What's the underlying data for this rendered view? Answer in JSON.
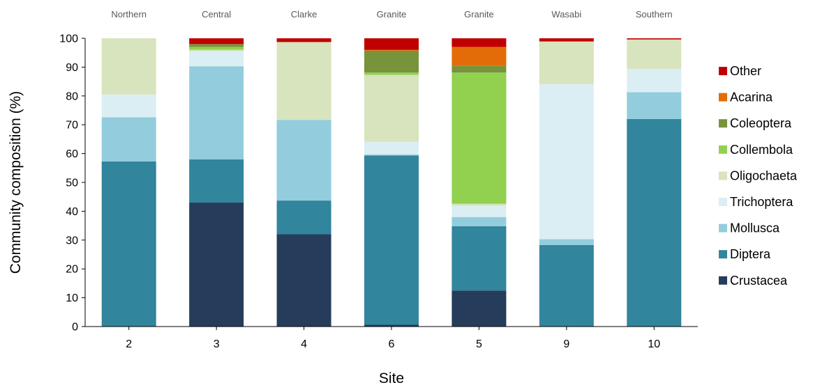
{
  "chart_data": {
    "type": "bar",
    "stacked": true,
    "xlabel": "Site",
    "ylabel": "Community composition (%)",
    "ylim": [
      0,
      100
    ],
    "yticks": [
      0,
      10,
      20,
      30,
      40,
      50,
      60,
      70,
      80,
      90,
      100
    ],
    "grid": false,
    "legend_position": "right",
    "categories": [
      "2",
      "3",
      "4",
      "6",
      "5",
      "9",
      "10"
    ],
    "site_names": [
      "Northern",
      "Central",
      "Clarke",
      "Granite",
      "Granite",
      "Wasabi",
      "Southern"
    ],
    "series": [
      {
        "name": "Crustacea",
        "color": "#253d5b",
        "values": [
          0,
          43,
          32,
          0.6,
          12.5,
          0,
          0
        ]
      },
      {
        "name": "Diptera",
        "color": "#31859c",
        "values": [
          57.3,
          15,
          11.7,
          58.7,
          22.3,
          28.3,
          72
        ]
      },
      {
        "name": "Mollusca",
        "color": "#93cddd",
        "values": [
          15.3,
          32.3,
          28,
          0.4,
          3.2,
          2,
          9.3
        ]
      },
      {
        "name": "Trichoptera",
        "color": "#dbeef4",
        "values": [
          7.9,
          5.2,
          0,
          4.4,
          3.9,
          53.8,
          8.1
        ]
      },
      {
        "name": "Oligochaeta",
        "color": "#d7e4bd",
        "values": [
          19.5,
          0.5,
          27,
          23.2,
          0.7,
          14.8,
          10.2
        ]
      },
      {
        "name": "Collembola",
        "color": "#92d050",
        "values": [
          0,
          1.0,
          0,
          0.8,
          45.5,
          0,
          0
        ]
      },
      {
        "name": "Coleoptera",
        "color": "#77933c",
        "values": [
          0,
          1.0,
          0,
          7.6,
          2.4,
          0,
          0
        ]
      },
      {
        "name": "Acarina",
        "color": "#e36c09",
        "values": [
          0,
          0,
          0,
          0.3,
          6.5,
          0,
          0
        ]
      },
      {
        "name": "Other",
        "color": "#c00000",
        "values": [
          0,
          2.0,
          1.3,
          4.0,
          3.0,
          1.1,
          0.4
        ]
      }
    ]
  }
}
